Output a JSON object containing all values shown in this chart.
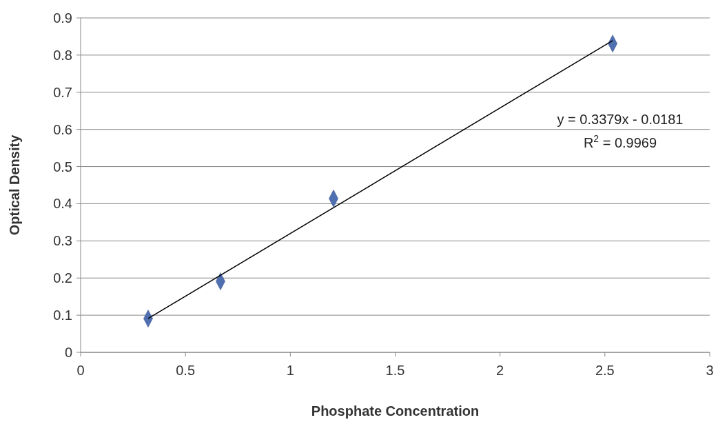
{
  "chart_data": {
    "type": "scatter",
    "xlabel": "Phosphate Concentration",
    "ylabel": "Optical Density",
    "xlim": [
      0,
      3
    ],
    "xticks": [
      0,
      0.5,
      1,
      1.5,
      2,
      2.5,
      3
    ],
    "ylim": [
      0,
      0.9
    ],
    "yticks": [
      0,
      0.1,
      0.2,
      0.3,
      0.4,
      0.5,
      0.6,
      0.7,
      0.8,
      0.9
    ],
    "grid": "y",
    "series": [
      {
        "color": "#4f6fb0",
        "marker": "diamond",
        "x": [
          0.322,
          0.667,
          1.206,
          2.537
        ],
        "values": [
          0.091,
          0.191,
          0.414,
          0.831
        ]
      },
      {
        "type": "line",
        "color": "#000000",
        "marker": "none",
        "x": [
          0.322,
          2.537
        ],
        "values": [
          0.091,
          0.839
        ]
      }
    ],
    "annotations": [
      "y = 0.3379x - 0.0181",
      "R$^{2}$ = 0.9969"
    ]
  }
}
